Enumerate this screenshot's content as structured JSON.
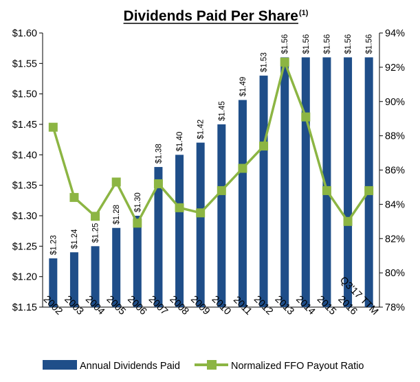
{
  "chart_data": {
    "type": "bar",
    "title": "Dividends Paid Per Share",
    "title_superscript": "(1)",
    "categories": [
      "2002",
      "2003",
      "2004",
      "2005",
      "2006",
      "2007",
      "2008",
      "2009",
      "2010",
      "2011",
      "2012",
      "2013",
      "2014",
      "2015",
      "2016",
      "Q3'17 TTM"
    ],
    "series": [
      {
        "name": "Annual Dividends Paid",
        "type": "bar",
        "axis": "left",
        "color": "#1f4e89",
        "values": [
          1.23,
          1.24,
          1.25,
          1.28,
          1.3,
          1.38,
          1.4,
          1.42,
          1.45,
          1.49,
          1.53,
          1.56,
          1.56,
          1.56,
          1.56,
          1.56
        ],
        "labels": [
          "$1.23",
          "$1.24",
          "$1.25",
          "$1.28",
          "$1.30",
          "$1.38",
          "$1.40",
          "$1.42",
          "$1.45",
          "$1.49",
          "$1.53",
          "$1.56",
          "$1.56",
          "$1.56",
          "$1.56",
          "$1.56"
        ]
      },
      {
        "name": "Normalized FFO Payout Ratio",
        "type": "line",
        "axis": "right",
        "color": "#8cb543",
        "values": [
          88.5,
          84.4,
          83.3,
          85.3,
          82.9,
          85.2,
          83.8,
          83.5,
          84.8,
          86.1,
          87.4,
          92.3,
          89.1,
          84.8,
          83.0,
          84.8
        ]
      }
    ],
    "y_left": {
      "lim": [
        1.15,
        1.6
      ],
      "ticks": [
        1.15,
        1.2,
        1.25,
        1.3,
        1.35,
        1.4,
        1.45,
        1.5,
        1.55,
        1.6
      ],
      "tick_labels": [
        "$1.15",
        "$1.20",
        "$1.25",
        "$1.30",
        "$1.35",
        "$1.40",
        "$1.45",
        "$1.50",
        "$1.55",
        "$1.60"
      ]
    },
    "y_right": {
      "lim": [
        78,
        94
      ],
      "ticks": [
        78,
        80,
        82,
        84,
        86,
        88,
        90,
        92,
        94
      ],
      "tick_labels": [
        "78%",
        "80%",
        "82%",
        "84%",
        "86%",
        "88%",
        "90%",
        "92%",
        "94%"
      ]
    },
    "xlabel": "",
    "ylabel": "",
    "grid": false,
    "legend_position": "bottom"
  }
}
